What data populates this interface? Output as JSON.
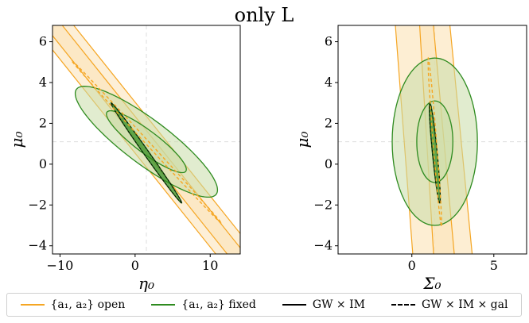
{
  "title": "only L",
  "colors": {
    "open": "#f5a623",
    "open_fill": "#fbe2b6",
    "fixed": "#2e8b1f",
    "fixed_fill": "#c9dca8",
    "gw_im": "#000000",
    "gw_im_gal": "#000000"
  },
  "legend": [
    {
      "label": "{a₁, a₂} open",
      "color": "#f5a623",
      "style": "solid"
    },
    {
      "label": "{a₁, a₂} fixed",
      "color": "#2e8b1f",
      "style": "solid"
    },
    {
      "label": "GW × IM",
      "color": "#000000",
      "style": "solid"
    },
    {
      "label": "GW × IM × gal",
      "color": "#000000",
      "style": "dashed"
    }
  ],
  "chart_data": [
    {
      "type": "scatter",
      "subtype": "confidence-ellipses",
      "xlabel": "η₀",
      "ylabel": "μ₀",
      "xlim": [
        -11,
        14
      ],
      "ylim": [
        -4.4,
        6.8
      ],
      "xticks": [
        -10,
        0,
        10
      ],
      "yticks": [
        -4,
        -2,
        0,
        2,
        4,
        6
      ],
      "fiducial": {
        "x": 1.5,
        "y": 1.1
      },
      "series": [
        {
          "name": "{a₁, a₂} open",
          "style": "band",
          "center": [
            1.5,
            1.1
          ],
          "slope": -0.46,
          "half_width_1sigma": 0.55,
          "half_width_2sigma": 1.25
        },
        {
          "name": "{a₁, a₂} fixed",
          "style": "ellipse",
          "center": [
            1.5,
            1.1
          ],
          "sigma_1": {
            "semi_major_x_extent": [
              -3.2,
              6.2
            ],
            "semi_minor": 0.45
          },
          "sigma_2": {
            "semi_major_x_extent": [
              -7.2,
              9.9
            ],
            "semi_minor": 0.9
          }
        },
        {
          "name": "GW × IM",
          "style": "thin-ellipse",
          "x_extent": [
            -3.2,
            6.2
          ],
          "y_extent": [
            -1.9,
            3.0
          ]
        },
        {
          "name": "GW × IM × gal",
          "style": "thin-ellipse-dashed",
          "x_extent": [
            -8.5,
            11.5
          ],
          "y_extent": [
            -2.9,
            5.1
          ]
        }
      ]
    },
    {
      "type": "scatter",
      "subtype": "confidence-ellipses",
      "xlabel": "Σ₀",
      "ylabel": "μ₀",
      "xlim": [
        -4.5,
        7
      ],
      "ylim": [
        -4.4,
        6.8
      ],
      "xticks": [
        0,
        5
      ],
      "yticks": [
        -4,
        -2,
        0,
        2,
        4,
        6
      ],
      "fiducial": {
        "x": 1.4,
        "y": 1.1
      },
      "series": [
        {
          "name": "{a₁, a₂} open",
          "style": "band",
          "top_x_range": [
            -1.1,
            0.4
          ],
          "bottom_x_range": [
            2.3,
            3.8
          ]
        },
        {
          "name": "{a₁, a₂} fixed",
          "style": "ellipse",
          "center": [
            1.4,
            1.1
          ],
          "sigma_1": {
            "x_half": 1.1,
            "y_half": 2.0
          },
          "sigma_2": {
            "x_half": 2.6,
            "y_half": 4.1
          }
        },
        {
          "name": "GW × IM",
          "style": "thin-ellipse",
          "x_extent": [
            1.1,
            1.7
          ],
          "y_extent": [
            -1.9,
            3.0
          ]
        },
        {
          "name": "GW × IM × gal",
          "style": "thin-ellipse-dashed",
          "x_extent": [
            1.0,
            1.8
          ],
          "y_extent": [
            -3.0,
            5.2
          ]
        }
      ]
    }
  ]
}
